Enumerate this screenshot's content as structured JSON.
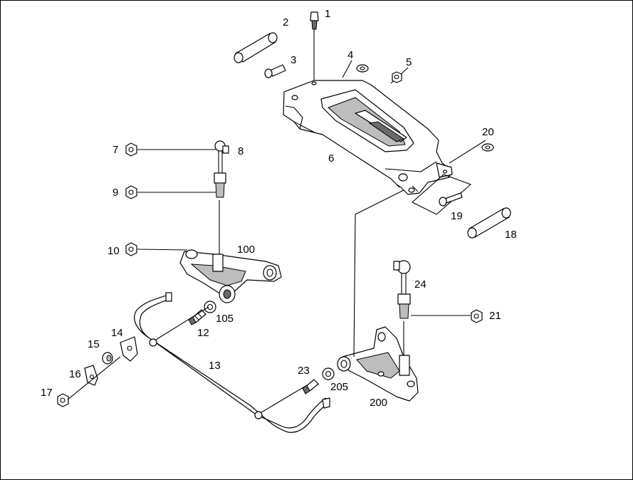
{
  "diagram": {
    "callouts": [
      {
        "id": "c1",
        "text": "1"
      },
      {
        "id": "c2",
        "text": "2"
      },
      {
        "id": "c3",
        "text": "3"
      },
      {
        "id": "c4",
        "text": "4"
      },
      {
        "id": "c5",
        "text": "5"
      },
      {
        "id": "c6",
        "text": "6"
      },
      {
        "id": "c7",
        "text": "7"
      },
      {
        "id": "c8",
        "text": "8"
      },
      {
        "id": "c9",
        "text": "9"
      },
      {
        "id": "c10",
        "text": "10"
      },
      {
        "id": "c12",
        "text": "12"
      },
      {
        "id": "c13",
        "text": "13"
      },
      {
        "id": "c14",
        "text": "14"
      },
      {
        "id": "c15",
        "text": "15"
      },
      {
        "id": "c16",
        "text": "16"
      },
      {
        "id": "c17",
        "text": "17"
      },
      {
        "id": "c18",
        "text": "18"
      },
      {
        "id": "c19",
        "text": "19"
      },
      {
        "id": "c20",
        "text": "20"
      },
      {
        "id": "c21",
        "text": "21"
      },
      {
        "id": "c23",
        "text": "23"
      },
      {
        "id": "c24",
        "text": "24"
      },
      {
        "id": "c100",
        "text": "100"
      },
      {
        "id": "c105",
        "text": "105"
      },
      {
        "id": "c200",
        "text": "200"
      },
      {
        "id": "c205",
        "text": "205"
      }
    ]
  }
}
